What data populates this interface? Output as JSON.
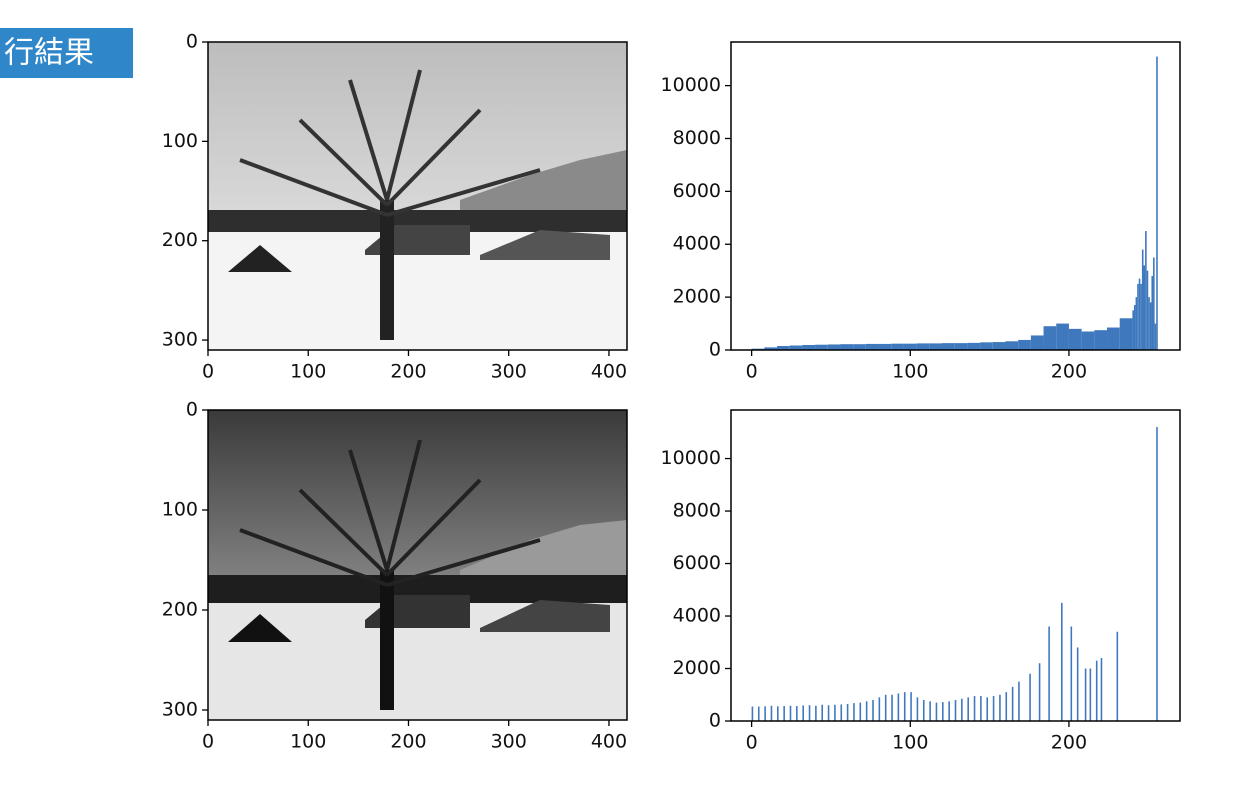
{
  "label": "行結果",
  "chart_data": [
    {
      "type": "image",
      "xlim": [
        0,
        418
      ],
      "ylim": [
        310,
        0
      ],
      "xticks": [
        0,
        100,
        200,
        300,
        400
      ],
      "yticks": [
        0,
        100,
        200,
        300
      ]
    },
    {
      "type": "histogram",
      "color": "#3f78bd",
      "xlim": [
        -13,
        270
      ],
      "ylim": [
        0,
        11650
      ],
      "xticks": [
        0,
        100,
        200
      ],
      "yticks": [
        0,
        2000,
        4000,
        6000,
        8000,
        10000
      ],
      "bins": [
        0,
        8,
        16,
        24,
        32,
        40,
        48,
        56,
        64,
        72,
        80,
        88,
        96,
        104,
        112,
        120,
        128,
        136,
        144,
        152,
        160,
        168,
        176,
        184,
        192,
        200,
        208,
        216,
        224,
        232,
        240,
        241,
        242,
        243,
        244,
        245,
        246,
        247,
        248,
        249,
        250,
        251,
        252,
        253,
        254,
        255,
        256
      ],
      "values": [
        50,
        100,
        150,
        170,
        190,
        200,
        210,
        220,
        220,
        230,
        230,
        240,
        240,
        250,
        250,
        260,
        260,
        270,
        290,
        300,
        330,
        380,
        550,
        900,
        1000,
        800,
        700,
        750,
        850,
        1200,
        1500,
        1700,
        2000,
        2500,
        2700,
        2500,
        3800,
        3200,
        4500,
        3000,
        2000,
        1800,
        2800,
        3500,
        1000,
        11100
      ]
    },
    {
      "type": "image",
      "xlim": [
        0,
        418
      ],
      "ylim": [
        310,
        0
      ],
      "xticks": [
        0,
        100,
        200,
        300,
        400
      ],
      "yticks": [
        0,
        100,
        200,
        300
      ]
    },
    {
      "type": "bar",
      "color": "#3f78bd",
      "xlim": [
        -13,
        270
      ],
      "ylim": [
        0,
        11850
      ],
      "xticks": [
        0,
        100,
        200
      ],
      "yticks": [
        0,
        2000,
        4000,
        6000,
        8000,
        10000
      ],
      "x": [
        0,
        4,
        8,
        12,
        16,
        20,
        24,
        28,
        32,
        36,
        40,
        44,
        48,
        52,
        56,
        60,
        64,
        68,
        72,
        76,
        80,
        84,
        88,
        92,
        96,
        100,
        104,
        108,
        112,
        116,
        120,
        124,
        128,
        132,
        136,
        140,
        144,
        148,
        152,
        156,
        160,
        164,
        168,
        175,
        181,
        187,
        195,
        201,
        205,
        210,
        213,
        217,
        220,
        230,
        255
      ],
      "values": [
        550,
        550,
        560,
        580,
        560,
        570,
        580,
        570,
        590,
        600,
        580,
        620,
        600,
        620,
        630,
        650,
        680,
        700,
        750,
        800,
        900,
        1000,
        1000,
        1050,
        1100,
        1100,
        900,
        800,
        750,
        700,
        720,
        750,
        800,
        850,
        900,
        950,
        950,
        900,
        950,
        1000,
        1100,
        1300,
        1500,
        1800,
        2200,
        3600,
        4500,
        3600,
        2800,
        2000,
        2000,
        2300,
        2400,
        3400,
        11200
      ]
    }
  ]
}
